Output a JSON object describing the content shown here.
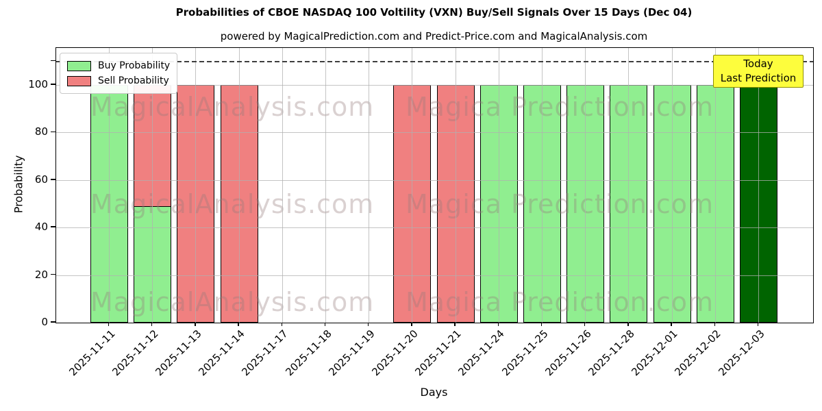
{
  "title": "Probabilities of CBOE NASDAQ 100 Voltility (VXN) Buy/Sell Signals Over 15 Days (Dec 04)",
  "subtitle": "powered by MagicalPrediction.com and Predict-Price.com and MagicalAnalysis.com",
  "axes": {
    "xlabel": "Days",
    "ylabel": "Probability"
  },
  "legend": {
    "items": [
      {
        "label": "Buy Probability",
        "color": "#90ee90"
      },
      {
        "label": "Sell Probability",
        "color": "#f08080"
      }
    ]
  },
  "annotation": {
    "line1": "Today",
    "line2": "Last Prediction",
    "bg": "#fdfd3d",
    "border": "#8f8f00"
  },
  "watermarks": {
    "left_text": "MagicalAnalysis.com",
    "right_text": "Magica Prediction.com",
    "color": "rgba(150,122,122,0.35)"
  },
  "colors": {
    "buy": "#90ee90",
    "sell": "#f08080",
    "today_buy": "#006400",
    "bar_edge": "#000000",
    "grid": "rgba(176,176,176,0.75)",
    "dashed_line": "#3d3d3d"
  },
  "chart_data": {
    "type": "bar",
    "title": "Probabilities of CBOE NASDAQ 100 Voltility (VXN) Buy/Sell Signals Over 15 Days (Dec 04)",
    "xlabel": "Days",
    "ylabel": "Probability",
    "categories": [
      "2025-11-11",
      "2025-11-12",
      "2025-11-13",
      "2025-11-14",
      "2025-11-17",
      "2025-11-18",
      "2025-11-19",
      "2025-11-20",
      "2025-11-21",
      "2025-11-24",
      "2025-11-25",
      "2025-11-26",
      "2025-11-28",
      "2025-12-01",
      "2025-12-02",
      "2025-12-03"
    ],
    "series": [
      {
        "name": "Buy Probability",
        "values": [
          100,
          49,
          0,
          0,
          0,
          0,
          0,
          0,
          0,
          100,
          100,
          100,
          100,
          100,
          100,
          100
        ]
      },
      {
        "name": "Sell Probability",
        "values": [
          0,
          100,
          100,
          100,
          0,
          0,
          0,
          100,
          100,
          0,
          0,
          0,
          0,
          0,
          0,
          0
        ]
      }
    ],
    "today_index": 15,
    "yticks": [
      0,
      20,
      40,
      60,
      80,
      100
    ],
    "ylim": [
      0,
      116
    ],
    "dashed_hline": 110,
    "grid": true,
    "legend_position": "upper left"
  }
}
